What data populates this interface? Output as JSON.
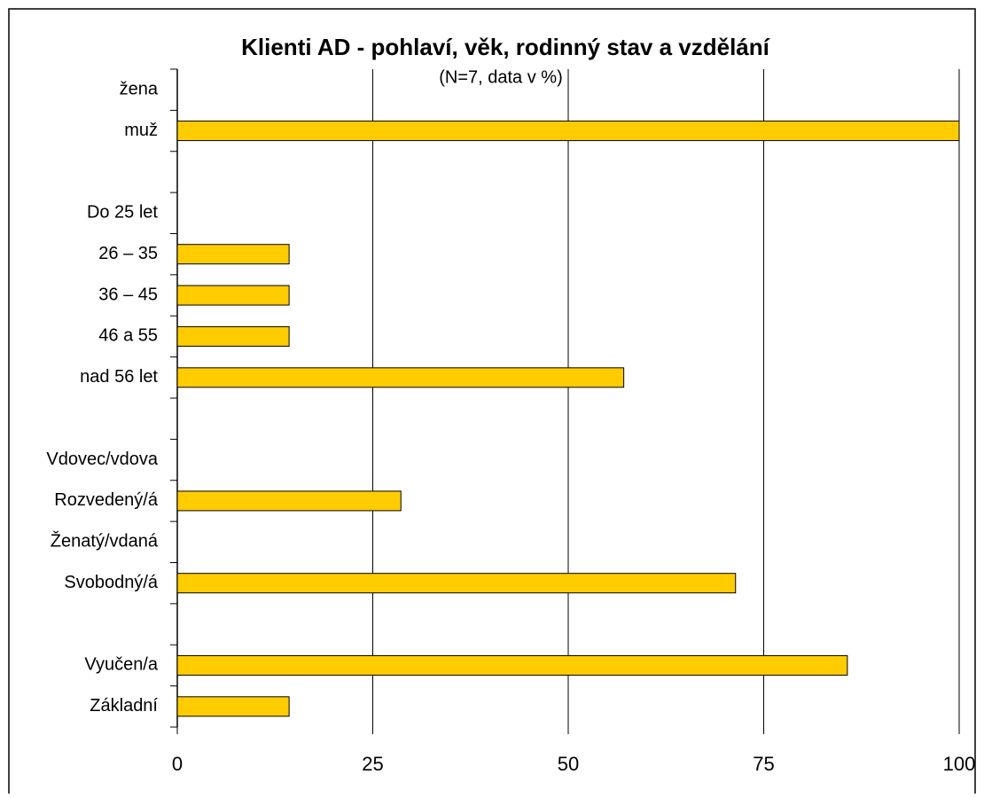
{
  "chart_data": {
    "type": "bar",
    "orientation": "horizontal",
    "title": "Klienti AD - pohlaví, věk, rodinný stav a vzdělání",
    "subtitle": "(N=7, data v %)",
    "categories": [
      "žena",
      "muž",
      null,
      "Do 25 let",
      "26 – 35",
      "36 – 45",
      "46 a 55",
      "nad 56 let",
      null,
      "Vdovec/vdova",
      "Rozvedený/á",
      "Ženatý/vdaná",
      "Svobodný/á",
      null,
      "Vyučen/a",
      "Základní"
    ],
    "values": [
      0,
      100,
      null,
      0,
      14.3,
      14.3,
      14.3,
      57.1,
      null,
      0,
      28.6,
      0,
      71.4,
      null,
      85.7,
      14.3
    ],
    "color": "#ffcc00",
    "xlim": [
      0,
      100
    ],
    "xticks": [
      0,
      25,
      50,
      75,
      100
    ],
    "grid": true
  }
}
